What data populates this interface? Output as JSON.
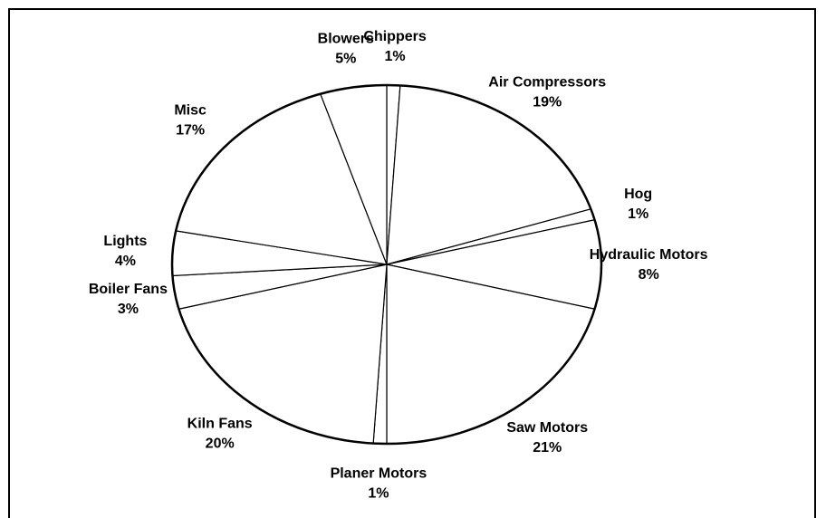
{
  "chart_data": {
    "type": "pie",
    "categories": [
      "Chippers",
      "Air Compressors",
      "Hog",
      "Hydraulic Motors",
      "Saw Motors",
      "Planer Motors",
      "Kiln Fans",
      "Boiler Fans",
      "Lights",
      "Misc",
      "Blowers"
    ],
    "values": [
      1,
      19,
      1,
      8,
      21,
      1,
      20,
      3,
      4,
      17,
      5
    ],
    "value_labels": [
      "1%",
      "19%",
      "1%",
      "8%",
      "21%",
      "1%",
      "20%",
      "3%",
      "4%",
      "17%",
      "5%"
    ],
    "color": "#ffffff"
  }
}
